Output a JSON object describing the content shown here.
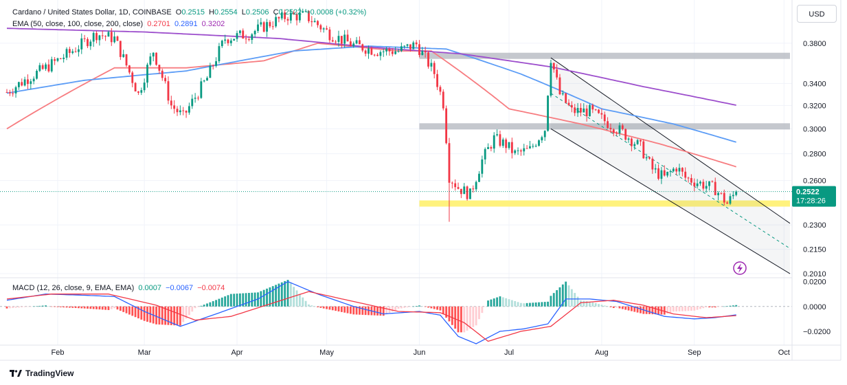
{
  "header": {
    "symbol": "Cardano / United States Dollar, 1D, COINBASE",
    "o_label": "O",
    "o_value": "0.2515",
    "h_label": "H",
    "h_value": "0.2554",
    "l_label": "L",
    "l_value": "0.2506",
    "c_label": "C",
    "c_value": "0.2522",
    "change": "+0.0008 (+0.32%)",
    "ema_label": "EMA (50, close, 100, close, 200, close)",
    "ema50": "0.2701",
    "ema100": "0.2891",
    "ema200": "0.3202"
  },
  "macd_legend": {
    "label": "MACD (12, 26, close, 9, EMA, EMA)",
    "hist": "0.0007",
    "macd": "−0.0067",
    "signal": "−0.0074"
  },
  "currency_button": "USD",
  "price_tag": {
    "value": "0.2522",
    "countdown": "17:28:26"
  },
  "footer": {
    "brand": "TradingView"
  },
  "colors": {
    "up": "#089981",
    "down": "#f23645",
    "ema50": "#f77c80",
    "ema100": "#5b9cf6",
    "ema200": "#9c4dcc",
    "macd": "#2962ff",
    "signal": "#f23645",
    "zone_gray": "#b2b5be",
    "zone_yellow": "#fff176",
    "channel": "#131722"
  },
  "chart_data": [
    {
      "type": "candlestick",
      "title": "Cardano / United States Dollar, 1D, COINBASE",
      "y_scale": "log",
      "y_ticks": [
        "0.3800",
        "0.3400",
        "0.3200",
        "0.3000",
        "0.2800",
        "0.2600",
        "0.2300",
        "0.2150",
        "0.2010"
      ],
      "x_ticks": [
        "Feb",
        "Mar",
        "Apr",
        "May",
        "Jun",
        "Jul",
        "Aug",
        "Sep",
        "Oct"
      ],
      "x_range": [
        "2024-01-15",
        "2024-10-03"
      ],
      "price_anchors": [
        [
          "2024-01-15",
          0.332
        ],
        [
          "2024-01-22",
          0.345
        ],
        [
          "2024-01-28",
          0.355
        ],
        [
          "2024-02-05",
          0.37
        ],
        [
          "2024-02-14",
          0.39
        ],
        [
          "2024-02-20",
          0.385
        ],
        [
          "2024-02-28",
          0.33
        ],
        [
          "2024-03-04",
          0.372
        ],
        [
          "2024-03-10",
          0.32
        ],
        [
          "2024-03-14",
          0.31
        ],
        [
          "2024-03-22",
          0.345
        ],
        [
          "2024-03-28",
          0.385
        ],
        [
          "2024-04-05",
          0.39
        ],
        [
          "2024-04-13",
          0.403
        ],
        [
          "2024-04-18",
          0.41
        ],
        [
          "2024-04-24",
          0.41
        ],
        [
          "2024-05-02",
          0.39
        ],
        [
          "2024-05-10",
          0.378
        ],
        [
          "2024-05-18",
          0.372
        ],
        [
          "2024-05-25",
          0.372
        ],
        [
          "2024-05-31",
          0.379
        ],
        [
          "2024-06-06",
          0.35
        ],
        [
          "2024-06-09",
          0.322
        ],
        [
          "2024-06-11",
          0.263
        ],
        [
          "2024-06-14",
          0.255
        ],
        [
          "2024-06-18",
          0.25
        ],
        [
          "2024-06-22",
          0.275
        ],
        [
          "2024-06-26",
          0.292
        ],
        [
          "2024-06-30",
          0.287
        ],
        [
          "2024-07-03",
          0.28
        ],
        [
          "2024-07-08",
          0.283
        ],
        [
          "2024-07-13",
          0.3
        ],
        [
          "2024-07-15",
          0.365
        ],
        [
          "2024-07-18",
          0.33
        ],
        [
          "2024-07-22",
          0.315
        ],
        [
          "2024-07-28",
          0.315
        ],
        [
          "2024-08-03",
          0.305
        ],
        [
          "2024-08-08",
          0.297
        ],
        [
          "2024-08-14",
          0.285
        ],
        [
          "2024-08-18",
          0.268
        ],
        [
          "2024-08-22",
          0.262
        ],
        [
          "2024-08-26",
          0.27
        ],
        [
          "2024-08-29",
          0.262
        ],
        [
          "2024-09-03",
          0.258
        ],
        [
          "2024-09-08",
          0.254
        ],
        [
          "2024-09-12",
          0.244
        ],
        [
          "2024-09-15",
          0.2522
        ]
      ],
      "ema_series": [
        {
          "name": "EMA 50",
          "anchors": [
            [
              "2024-01-15",
              0.3
            ],
            [
              "2024-02-20",
              0.355
            ],
            [
              "2024-03-15",
              0.355
            ],
            [
              "2024-04-10",
              0.362
            ],
            [
              "2024-04-28",
              0.38
            ],
            [
              "2024-05-25",
              0.372
            ],
            [
              "2024-06-05",
              0.372
            ],
            [
              "2024-07-01",
              0.317
            ],
            [
              "2024-07-25",
              0.304
            ],
            [
              "2024-08-20",
              0.288
            ],
            [
              "2024-09-15",
              0.2701
            ]
          ]
        },
        {
          "name": "EMA 100",
          "anchors": [
            [
              "2024-01-15",
              0.331
            ],
            [
              "2024-02-10",
              0.343
            ],
            [
              "2024-03-15",
              0.352
            ],
            [
              "2024-04-20",
              0.372
            ],
            [
              "2024-05-15",
              0.377
            ],
            [
              "2024-06-10",
              0.374
            ],
            [
              "2024-07-05",
              0.349
            ],
            [
              "2024-08-01",
              0.317
            ],
            [
              "2024-08-25",
              0.304
            ],
            [
              "2024-09-15",
              0.2891
            ]
          ]
        },
        {
          "name": "EMA 200",
          "anchors": [
            [
              "2024-01-15",
              0.396
            ],
            [
              "2024-03-01",
              0.392
            ],
            [
              "2024-04-15",
              0.385
            ],
            [
              "2024-05-15",
              0.376
            ],
            [
              "2024-06-15",
              0.369
            ],
            [
              "2024-07-15",
              0.356
            ],
            [
              "2024-08-15",
              0.337
            ],
            [
              "2024-09-15",
              0.3202
            ]
          ]
        }
      ],
      "zones": [
        {
          "color": "gray",
          "from": "2024-06-01",
          "price": 0.367
        },
        {
          "color": "gray",
          "from": "2024-06-01",
          "price": 0.302
        },
        {
          "color": "yellow",
          "from": "2024-06-01",
          "price": 0.244
        }
      ],
      "channel": {
        "upper": [
          [
            "2024-07-15",
            0.365
          ],
          [
            "2024-10-03",
            0.231
          ]
        ],
        "lower": [
          [
            "2024-07-15",
            0.3
          ],
          [
            "2024-10-03",
            0.201
          ]
        ]
      },
      "last_price": 0.2522
    },
    {
      "type": "macd",
      "title": "MACD (12, 26, close, 9, EMA, EMA)",
      "y_ticks": [
        "0.0200",
        "0.0000",
        "−0.0200"
      ],
      "ylim": [
        -0.03,
        0.022
      ],
      "macd_anchors": [
        [
          "2024-01-15",
          0.005
        ],
        [
          "2024-01-28",
          0.01
        ],
        [
          "2024-02-10",
          0.009
        ],
        [
          "2024-02-20",
          0.008
        ],
        [
          "2024-03-01",
          -0.004
        ],
        [
          "2024-03-13",
          -0.016
        ],
        [
          "2024-03-25",
          -0.006
        ],
        [
          "2024-04-08",
          0.006
        ],
        [
          "2024-04-18",
          0.02
        ],
        [
          "2024-04-28",
          0.01
        ],
        [
          "2024-05-10",
          0.0
        ],
        [
          "2024-05-20",
          -0.006
        ],
        [
          "2024-06-01",
          -0.004
        ],
        [
          "2024-06-08",
          -0.007
        ],
        [
          "2024-06-14",
          -0.024
        ],
        [
          "2024-06-20",
          -0.03
        ],
        [
          "2024-06-28",
          -0.02
        ],
        [
          "2024-07-06",
          -0.018
        ],
        [
          "2024-07-14",
          -0.014
        ],
        [
          "2024-07-20",
          0.006
        ],
        [
          "2024-07-28",
          0.006
        ],
        [
          "2024-08-06",
          0.004
        ],
        [
          "2024-08-14",
          -0.002
        ],
        [
          "2024-08-22",
          -0.008
        ],
        [
          "2024-09-01",
          -0.01
        ],
        [
          "2024-09-08",
          -0.009
        ],
        [
          "2024-09-15",
          -0.0067
        ]
      ],
      "signal_anchors": [
        [
          "2024-01-15",
          0.006
        ],
        [
          "2024-01-30",
          0.01
        ],
        [
          "2024-02-18",
          0.01
        ],
        [
          "2024-03-05",
          0.001
        ],
        [
          "2024-03-18",
          -0.011
        ],
        [
          "2024-03-30",
          -0.008
        ],
        [
          "2024-04-12",
          0.002
        ],
        [
          "2024-04-25",
          0.012
        ],
        [
          "2024-05-10",
          0.004
        ],
        [
          "2024-05-25",
          -0.004
        ],
        [
          "2024-06-08",
          -0.005
        ],
        [
          "2024-06-16",
          -0.013
        ],
        [
          "2024-06-24",
          -0.028
        ],
        [
          "2024-07-05",
          -0.02
        ],
        [
          "2024-07-15",
          -0.016
        ],
        [
          "2024-07-25",
          0.003
        ],
        [
          "2024-08-05",
          0.005
        ],
        [
          "2024-08-15",
          0.001
        ],
        [
          "2024-08-25",
          -0.006
        ],
        [
          "2024-09-05",
          -0.009
        ],
        [
          "2024-09-15",
          -0.0074
        ]
      ]
    }
  ]
}
